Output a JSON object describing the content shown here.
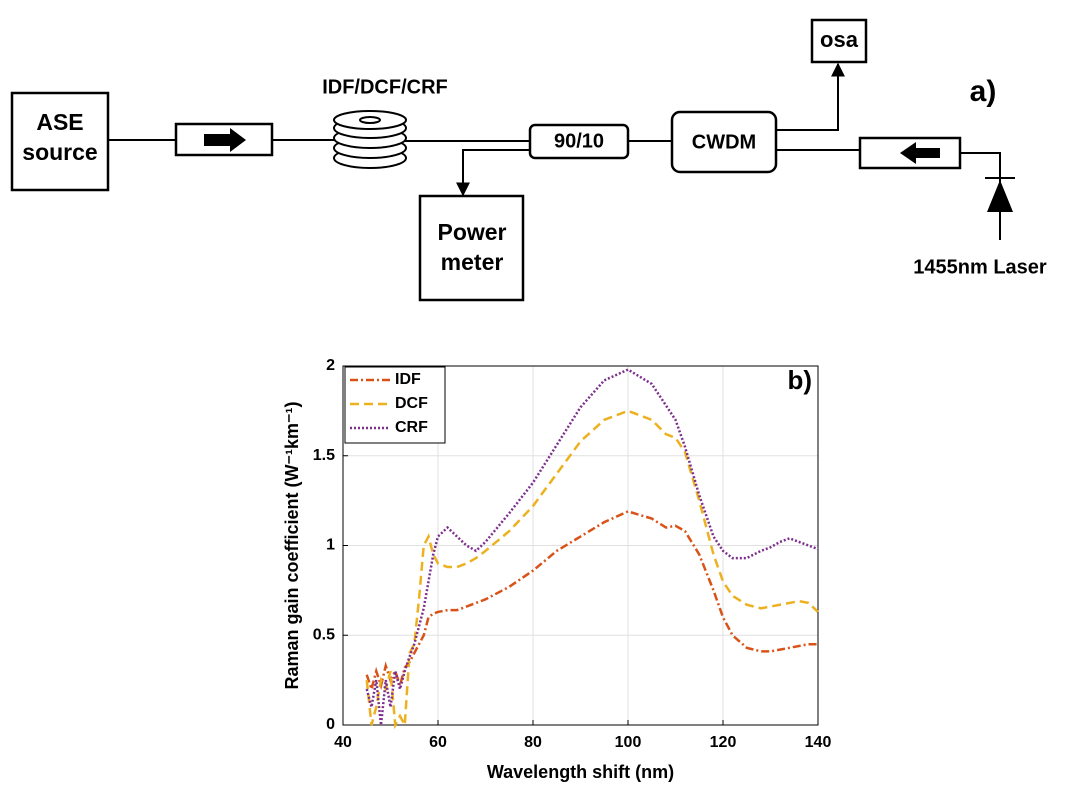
{
  "diagram": {
    "label": "a)",
    "nodes": [
      "ASE source",
      "IDF/DCF/CRF",
      "90/10",
      "Power meter",
      "CWDM",
      "osa",
      "1455nm Laser"
    ]
  },
  "chart_data": {
    "type": "line",
    "annotation": "b)",
    "x_label": "Wavelength shift (nm)",
    "y_label": "Raman gain coefficient (W⁻¹km⁻¹)",
    "x": [
      45,
      46,
      47,
      48,
      49,
      50,
      51,
      52,
      53,
      54,
      55,
      56,
      57,
      58,
      59,
      60,
      62,
      64,
      66,
      68,
      70,
      75,
      80,
      85,
      90,
      95,
      100,
      105,
      108,
      110,
      112,
      115,
      118,
      120,
      122,
      125,
      128,
      130,
      132,
      134,
      136,
      138,
      140
    ],
    "series": [
      {
        "name": "IDF",
        "color": "#d95319",
        "dash": "8 3 2 3",
        "values": [
          0.28,
          0.2,
          0.3,
          0.22,
          0.33,
          0.25,
          0.3,
          0.22,
          0.32,
          0.35,
          0.4,
          0.45,
          0.5,
          0.6,
          0.62,
          0.63,
          0.64,
          0.64,
          0.66,
          0.68,
          0.7,
          0.77,
          0.86,
          0.97,
          1.05,
          1.13,
          1.19,
          1.15,
          1.1,
          1.11,
          1.08,
          0.95,
          0.75,
          0.6,
          0.5,
          0.43,
          0.41,
          0.41,
          0.42,
          0.43,
          0.44,
          0.45,
          0.45
        ]
      },
      {
        "name": "DCF",
        "color": "#edb120",
        "dash": "9 5",
        "values": [
          0.25,
          0,
          0.1,
          0.25,
          0.2,
          0.3,
          0,
          0.05,
          0,
          0.4,
          0.45,
          0.7,
          1,
          1.05,
          0.95,
          0.9,
          0.88,
          0.88,
          0.9,
          0.93,
          0.97,
          1.08,
          1.22,
          1.4,
          1.58,
          1.7,
          1.75,
          1.7,
          1.62,
          1.6,
          1.52,
          1.25,
          0.95,
          0.8,
          0.72,
          0.67,
          0.65,
          0.66,
          0.67,
          0.68,
          0.69,
          0.68,
          0.63
        ]
      },
      {
        "name": "CRF",
        "color": "#7e2f8e",
        "dash": "2 2",
        "values": [
          0.2,
          0.1,
          0.25,
          0,
          0.25,
          0.1,
          0.3,
          0.2,
          0.3,
          0.38,
          0.45,
          0.55,
          0.65,
          0.8,
          0.95,
          1.05,
          1.1,
          1.05,
          1,
          0.97,
          1.02,
          1.18,
          1.35,
          1.56,
          1.77,
          1.92,
          1.98,
          1.9,
          1.78,
          1.7,
          1.55,
          1.28,
          1.05,
          0.97,
          0.93,
          0.93,
          0.97,
          0.99,
          1.02,
          1.04,
          1.02,
          1,
          0.98
        ]
      }
    ],
    "xlim": [
      40,
      140
    ],
    "xticks": [
      40,
      60,
      80,
      100,
      120,
      140
    ],
    "ylim": [
      0,
      2
    ],
    "yticks": [
      0,
      0.5,
      1,
      1.5,
      2
    ],
    "grid": true,
    "legend": "top-left"
  }
}
